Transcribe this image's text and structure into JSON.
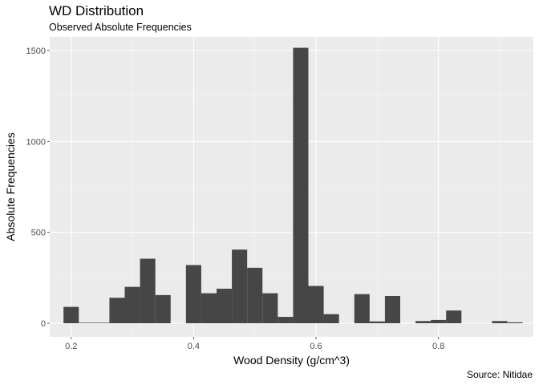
{
  "chart": {
    "title": "WD Distribution",
    "subtitle": "Observed Absolute Frequencies",
    "caption": "Source: Nitidae"
  },
  "chart_data": {
    "type": "bar",
    "title": "WD Distribution",
    "subtitle": "Observed Absolute Frequencies",
    "caption": "Source: Nitidae",
    "xlabel": "Wood Density (g/cm^3)",
    "ylabel": "Absolute Frequencies",
    "xlim": [
      0.165,
      0.955
    ],
    "ylim": [
      -75,
      1575
    ],
    "xticks": [
      0.2,
      0.4,
      0.6,
      0.8
    ],
    "xtick_labels": [
      "0.2",
      "0.4",
      "0.6",
      "0.8"
    ],
    "yticks": [
      0,
      500,
      1000,
      1500
    ],
    "ytick_labels": [
      "0",
      "500",
      "1000",
      "1500"
    ],
    "bin_width": 0.025,
    "bin_start": 0.1875,
    "values": [
      90,
      3,
      3,
      140,
      200,
      355,
      155,
      0,
      320,
      165,
      190,
      405,
      305,
      165,
      35,
      1515,
      205,
      50,
      0,
      160,
      10,
      150,
      0,
      12,
      18,
      70,
      0,
      0,
      12,
      5
    ],
    "colors": {
      "panel": "#EBEBEB",
      "bar": "#464646",
      "grid_major": "#FFFFFF",
      "grid_minor": "#F5F5F5"
    }
  }
}
